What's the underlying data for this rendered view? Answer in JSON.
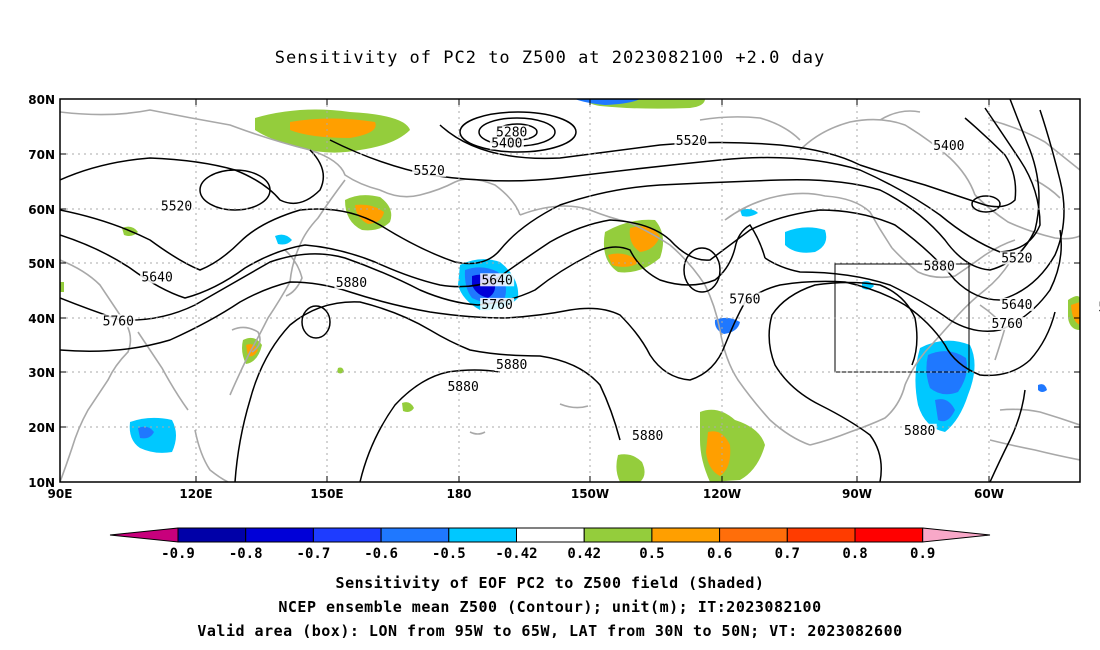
{
  "title": "Sensitivity of PC2 to Z500 at 2023082100 +2.0 day",
  "axes": {
    "lat_labels": [
      "80N",
      "70N",
      "60N",
      "50N",
      "40N",
      "30N",
      "20N",
      "10N"
    ],
    "lon_labels": [
      "90E",
      "120E",
      "150E",
      "180",
      "150W",
      "120W",
      "90W",
      "60W"
    ]
  },
  "contours": {
    "labels": [
      {
        "text": "5280",
        "lon": 183,
        "lat": 73.5
      },
      {
        "text": "5400",
        "lon": 182,
        "lat": 71.5
      },
      {
        "text": "5400",
        "lon": 273,
        "lat": 71
      },
      {
        "text": "5520",
        "lon": 220,
        "lat": 72
      },
      {
        "text": "5520",
        "lon": 166,
        "lat": 66.5
      },
      {
        "text": "5520",
        "lon": 114,
        "lat": 60
      },
      {
        "text": "5520",
        "lon": 287,
        "lat": 50.5
      },
      {
        "text": "5640",
        "lon": 110,
        "lat": 47
      },
      {
        "text": "5640",
        "lon": 180,
        "lat": 46.5
      },
      {
        "text": "5640",
        "lon": 287,
        "lat": 42
      },
      {
        "text": "5640",
        "lon": 307,
        "lat": 41.5
      },
      {
        "text": "5760",
        "lon": 102,
        "lat": 39
      },
      {
        "text": "5760",
        "lon": 180,
        "lat": 42
      },
      {
        "text": "5760",
        "lon": 231,
        "lat": 43
      },
      {
        "text": "5760",
        "lon": 285,
        "lat": 38.5
      },
      {
        "text": "5880",
        "lon": 150,
        "lat": 46
      },
      {
        "text": "5880",
        "lon": 173,
        "lat": 27
      },
      {
        "text": "5880",
        "lon": 183,
        "lat": 31
      },
      {
        "text": "5880",
        "lon": 211,
        "lat": 18
      },
      {
        "text": "5880",
        "lon": 267,
        "lat": 19
      },
      {
        "text": "5880",
        "lon": 271,
        "lat": 49
      }
    ]
  },
  "valid_box": {
    "lon_w": -95,
    "lon_e": -65,
    "lat_s": 30,
    "lat_n": 50
  },
  "colorbar": {
    "ticks": [
      "-0.9",
      "-0.8",
      "-0.7",
      "-0.6",
      "-0.5",
      "-0.42",
      "0.42",
      "0.5",
      "0.6",
      "0.7",
      "0.8",
      "0.9"
    ],
    "colors": [
      "#c8007c",
      "#0000a8",
      "#0000d8",
      "#1e3cff",
      "#1f78ff",
      "#00c8ff",
      "#ffffff",
      "#94cd3c",
      "#ff9f00",
      "#ff6e0a",
      "#ff3c00",
      "#ff0000",
      "#f8a8c8"
    ]
  },
  "footer": {
    "line1": "Sensitivity of EOF PC2 to Z500 field (Shaded)",
    "line2": "NCEP ensemble mean Z500 (Contour); unit(m); IT:2023082100",
    "line3": "Valid area (box): LON from 95W to 65W, LAT from 30N to 50N; VT: 2023082600"
  }
}
